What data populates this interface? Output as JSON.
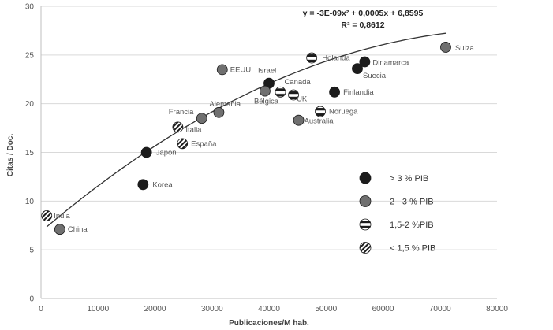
{
  "chart_data": {
    "type": "scatter",
    "xlabel": "Publicaciones/M hab.",
    "ylabel": "Citas / Doc.",
    "xlim": [
      0,
      80000
    ],
    "ylim": [
      0,
      30
    ],
    "xticks": [
      "0",
      "10000",
      "20000",
      "30000",
      "40000",
      "50000",
      "60000",
      "70000",
      "80000"
    ],
    "yticks": [
      "0",
      "5",
      "10",
      "15",
      "20",
      "25",
      "30"
    ],
    "grid": "horizontal",
    "trendline": {
      "equation": "y = -3E-09x² + 0,0005x + 6,8595",
      "r_squared": "R² = 0,8612",
      "a": -3e-09,
      "b": 0.0005,
      "c": 6.8595,
      "x_range": [
        1000,
        71000
      ]
    },
    "categories": [
      {
        "key": "gt3",
        "label": "> 3 % PIB",
        "color": "#1c1c1c",
        "pattern": "solid"
      },
      {
        "key": "b23",
        "label": "2 - 3 % PIB",
        "color": "#707070",
        "pattern": "solid"
      },
      {
        "key": "b152",
        "label": "1,5-2 %PIB",
        "color": "#1c1c1c",
        "pattern": "hstripe"
      },
      {
        "key": "lt15",
        "label": "< 1,5 % PIB",
        "color": "#1c1c1c",
        "pattern": "dstripe"
      }
    ],
    "points": [
      {
        "name": "India",
        "x": 1000,
        "y": 8.5,
        "cat": "lt15",
        "lx": 9,
        "ly": 3
      },
      {
        "name": "China",
        "x": 3300,
        "y": 7.1,
        "cat": "b23",
        "lx": 10,
        "ly": 3
      },
      {
        "name": "Korea",
        "x": 17900,
        "y": 11.7,
        "cat": "gt3",
        "lx": 12,
        "ly": 3
      },
      {
        "name": "Japon",
        "x": 18500,
        "y": 15.0,
        "cat": "gt3",
        "lx": 12,
        "ly": 3
      },
      {
        "name": "Italia",
        "x": 24000,
        "y": 17.6,
        "cat": "lt15",
        "lx": 10,
        "ly": 6
      },
      {
        "name": "España",
        "x": 24800,
        "y": 15.9,
        "cat": "lt15",
        "lx": 11,
        "ly": 3
      },
      {
        "name": "Francia",
        "x": 28200,
        "y": 18.5,
        "cat": "b23",
        "lx": -42,
        "ly": -5
      },
      {
        "name": "Alemania",
        "x": 31200,
        "y": 19.1,
        "cat": "b23",
        "lx": -12,
        "ly": -8
      },
      {
        "name": "EEUU",
        "x": 31800,
        "y": 23.5,
        "cat": "b23",
        "lx": 10,
        "ly": 3
      },
      {
        "name": "Israel",
        "x": 40000,
        "y": 22.1,
        "cat": "gt3",
        "lx": -14,
        "ly": -13
      },
      {
        "name": "Bélgica",
        "x": 39300,
        "y": 21.3,
        "cat": "b23",
        "lx": -14,
        "ly": 16
      },
      {
        "name": "Canada",
        "x": 42000,
        "y": 21.2,
        "cat": "b152",
        "lx": 5,
        "ly": -10
      },
      {
        "name": "UK",
        "x": 44300,
        "y": 20.9,
        "cat": "b152",
        "lx": 4,
        "ly": 8
      },
      {
        "name": "Australia",
        "x": 45200,
        "y": 18.3,
        "cat": "b23",
        "lx": 7,
        "ly": 4
      },
      {
        "name": "Noruega",
        "x": 49000,
        "y": 19.2,
        "cat": "b152",
        "lx": 11,
        "ly": 3
      },
      {
        "name": "Holanda",
        "x": 47500,
        "y": 24.7,
        "cat": "b152",
        "lx": 13,
        "ly": 3
      },
      {
        "name": "Finlandia",
        "x": 51500,
        "y": 21.2,
        "cat": "gt3",
        "lx": 11,
        "ly": 3
      },
      {
        "name": "Suecia",
        "x": 55500,
        "y": 23.6,
        "cat": "gt3",
        "lx": 7,
        "ly": 12
      },
      {
        "name": "Dinamarca",
        "x": 56800,
        "y": 24.3,
        "cat": "gt3",
        "lx": 10,
        "ly": 4
      },
      {
        "name": "Suiza",
        "x": 71000,
        "y": 25.8,
        "cat": "b23",
        "lx": 12,
        "ly": 4
      }
    ]
  }
}
